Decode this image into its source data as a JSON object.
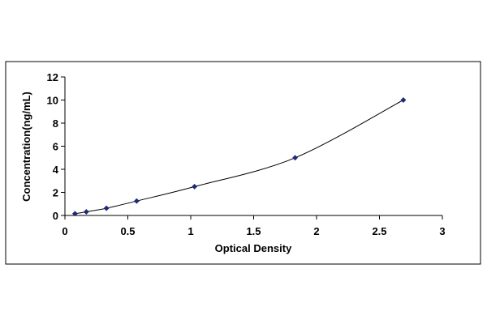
{
  "chart_data": {
    "type": "scatter",
    "title": "",
    "xlabel": "Optical Density",
    "ylabel": "Concentration(ng/mL)",
    "xlim": [
      0,
      3
    ],
    "ylim": [
      0,
      12
    ],
    "x_ticks": [
      "0",
      "0.5",
      "1",
      "1.5",
      "2",
      "2.5",
      "3"
    ],
    "y_ticks": [
      "0",
      "2",
      "4",
      "6",
      "8",
      "10",
      "12"
    ],
    "grid": false,
    "legend": "none",
    "fit_line": "smooth curve through points",
    "series": [
      {
        "x": [
          0.08,
          0.17,
          0.33,
          0.57,
          1.03,
          1.83,
          2.69
        ],
        "y": [
          0.156,
          0.313,
          0.625,
          1.25,
          2.5,
          5,
          10
        ]
      }
    ],
    "colors": {
      "marker": "#1f2a7a",
      "line": "#000000",
      "frame": "#000000"
    }
  }
}
